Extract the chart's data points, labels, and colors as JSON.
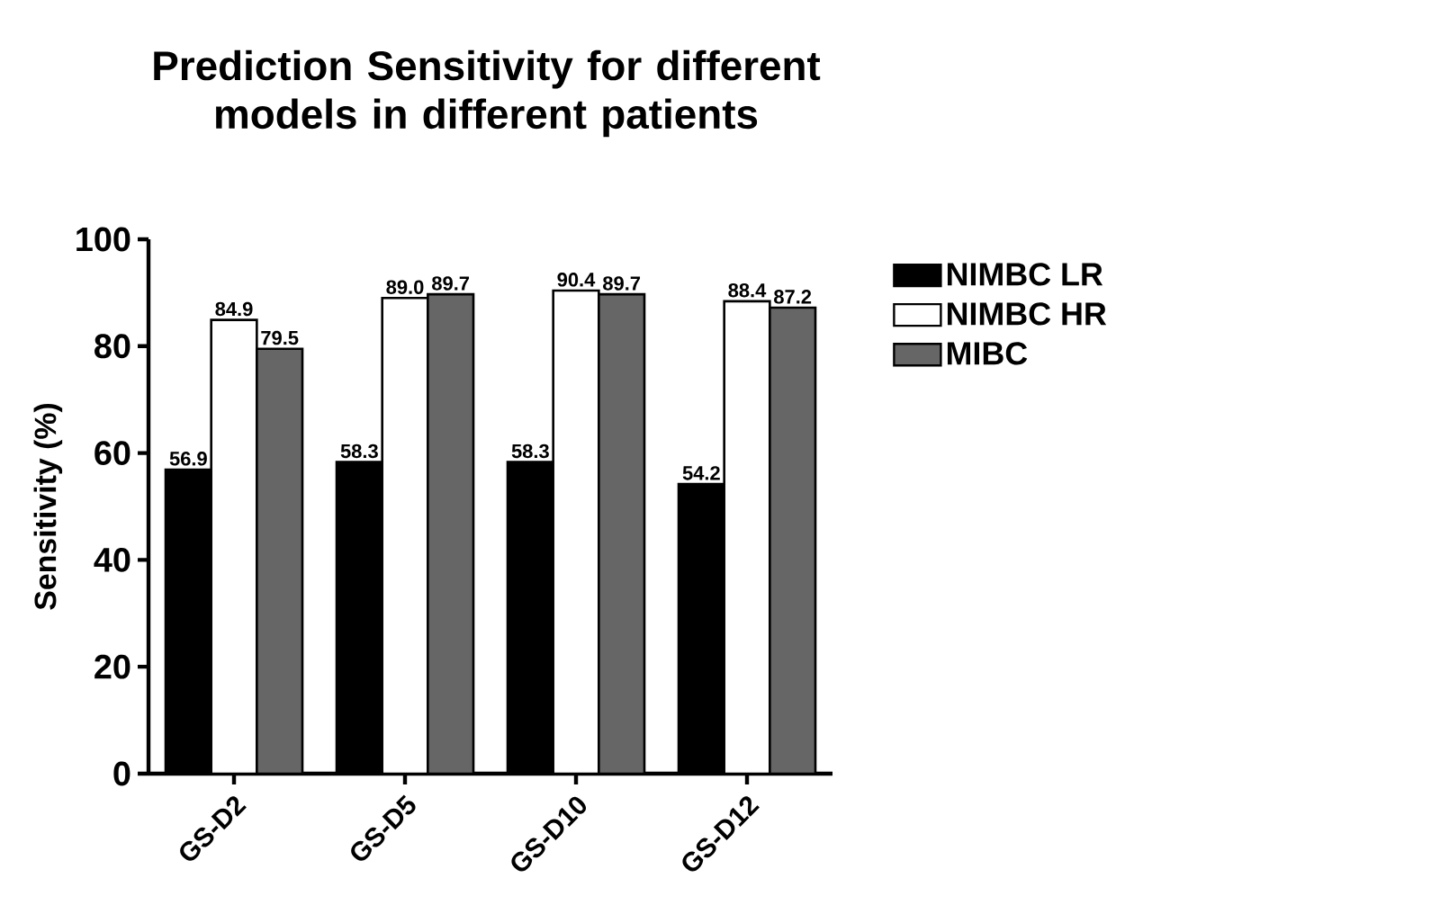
{
  "chart_data": {
    "type": "bar",
    "title": "Prediction Sensitivity for different models in different patients",
    "ylabel": "Sensitivity (%)",
    "categories": [
      "GS-D2",
      "GS-D5",
      "GS-D10",
      "GS-D12"
    ],
    "series": [
      {
        "name": "NIMBC LR",
        "color": "#000000",
        "values": [
          56.9,
          58.3,
          58.3,
          54.2
        ],
        "value_labels": [
          "56.9",
          "58.3",
          "58.3",
          "54.2"
        ]
      },
      {
        "name": "NIMBC HR",
        "color": "#ffffff",
        "values": [
          84.9,
          89.0,
          90.4,
          88.4
        ],
        "value_labels": [
          "84.9",
          "89.0",
          "90.4",
          "88.4"
        ]
      },
      {
        "name": "MIBC",
        "color": "#666666",
        "values": [
          79.5,
          89.7,
          89.7,
          87.2
        ],
        "value_labels": [
          "79.5",
          "89.7",
          "89.7",
          "87.2"
        ]
      }
    ],
    "ylim": [
      0,
      100
    ],
    "yticks": [
      0,
      20,
      40,
      60,
      80,
      100
    ],
    "legend": "right",
    "grid": false
  }
}
